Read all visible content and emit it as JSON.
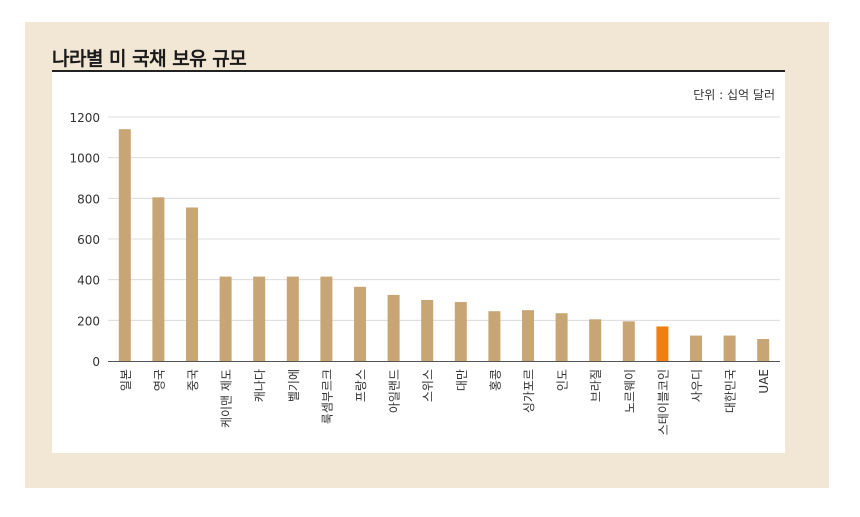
{
  "title": "나라별 미 국채 보유 규모",
  "unit_label": "단위 : 십억 달러",
  "colors": {
    "frame": "#f2e6d4",
    "bar": "#c8a574",
    "highlight": "#f07f11",
    "grid": "#dcdcdc"
  },
  "chart_data": {
    "type": "bar",
    "title": "나라별 미 국채 보유 규모",
    "unit": "단위 : 십억 달러",
    "categories": [
      "일본",
      "영국",
      "중국",
      "케이맨 제도",
      "캐나다",
      "벨기에",
      "룩셈부르크",
      "프랑스",
      "아일랜드",
      "스위스",
      "대만",
      "홍콩",
      "싱가포르",
      "인도",
      "브라질",
      "노르웨이",
      "스테이블코인",
      "사우디",
      "대한민국",
      "UAE"
    ],
    "values": [
      1140,
      805,
      755,
      415,
      415,
      415,
      415,
      365,
      325,
      300,
      290,
      245,
      250,
      235,
      205,
      195,
      170,
      125,
      125,
      108
    ],
    "highlight_index": 16,
    "ylim": [
      0,
      1200
    ],
    "yticks": [
      0,
      200,
      400,
      600,
      800,
      1000,
      1200
    ],
    "grid": true
  }
}
